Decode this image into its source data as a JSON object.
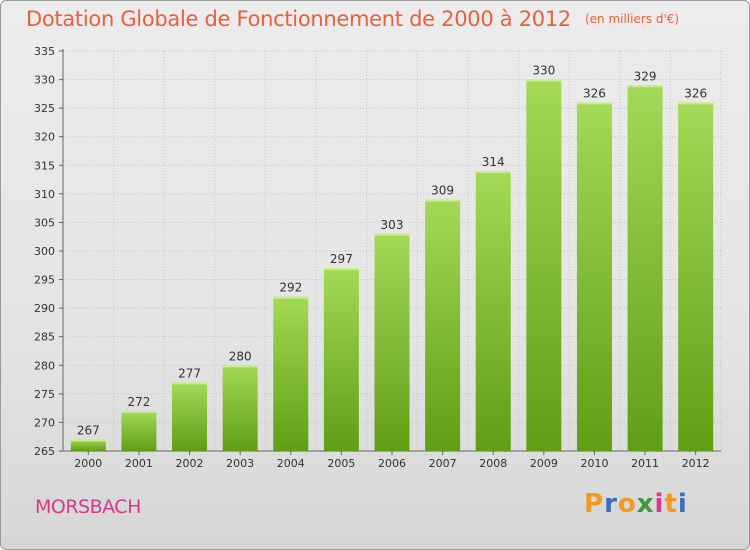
{
  "header": {
    "title": "Dotation Globale de Fonctionnement de 2000 à 2012",
    "unit": "(en milliers d'€)"
  },
  "footer": {
    "commune": "MORSBACH",
    "logo_text": "Proxiti"
  },
  "colors": {
    "title": "#e8603c",
    "commune": "#d43a8a",
    "bar_light": "#9dd350",
    "bar_dark": "#5f9e15",
    "logo_letters": [
      "#f29a1e",
      "#3a6fc0",
      "#f29a1e",
      "#3a9a3a",
      "#d43a8a",
      "#f29a1e",
      "#3a6fc0"
    ]
  },
  "chart_data": {
    "type": "bar",
    "title": "Dotation Globale de Fonctionnement de 2000 à 2012",
    "categories": [
      "2000",
      "2001",
      "2002",
      "2003",
      "2004",
      "2005",
      "2006",
      "2007",
      "2008",
      "2009",
      "2010",
      "2011",
      "2012"
    ],
    "values": [
      267,
      272,
      277,
      280,
      292,
      297,
      303,
      309,
      314,
      330,
      326,
      329,
      326
    ],
    "ylim": [
      265,
      335
    ],
    "yticks": [
      265,
      270,
      275,
      280,
      285,
      290,
      295,
      300,
      305,
      310,
      315,
      320,
      325,
      330,
      335
    ],
    "grid": true,
    "data_labels": true
  }
}
